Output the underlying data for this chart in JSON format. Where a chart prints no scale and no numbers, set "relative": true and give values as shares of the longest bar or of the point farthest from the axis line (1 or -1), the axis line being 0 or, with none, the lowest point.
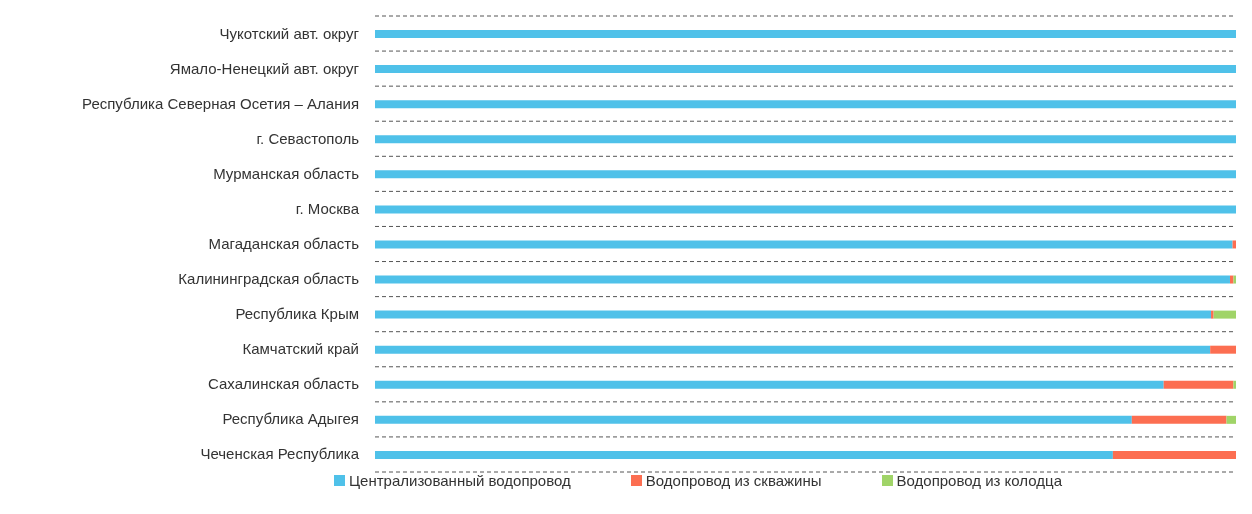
{
  "chart_data": {
    "type": "bar",
    "orientation": "horizontal",
    "stacked": true,
    "relative": true,
    "grid": "y",
    "legend": "bottom",
    "categories": [
      "Чукотский авт. округ",
      "Ямало-Ненецкий авт. округ",
      "Республика Северная Осетия – Алания",
      "г. Севастополь",
      "Мурманская область",
      "г. Москва",
      "Магаданская область",
      "Калининградская область",
      "Республика Крым",
      "Камчатский край",
      "Сахалинская область",
      "Республика Адыгея",
      "Чеченская Республика"
    ],
    "series": [
      {
        "name": "Централизованный водопровод",
        "color": "#4fc1e9",
        "values": [
          1,
          1,
          1,
          1,
          1,
          1,
          0.996,
          0.993,
          0.971,
          0.97,
          0.916,
          0.879,
          0.857
        ]
      },
      {
        "name": "Водопровод из скважины",
        "color": "#fc6e51",
        "values": [
          0,
          0,
          0,
          0,
          0,
          0,
          0.004,
          0.004,
          0.003,
          0.03,
          0.081,
          0.11,
          0.143
        ]
      },
      {
        "name": "Водопровод из колодца",
        "color": "#a0d468",
        "values": [
          0,
          0,
          0,
          0,
          0,
          0,
          0,
          0.003,
          0.026,
          0,
          0.003,
          0.011,
          0
        ]
      }
    ]
  }
}
